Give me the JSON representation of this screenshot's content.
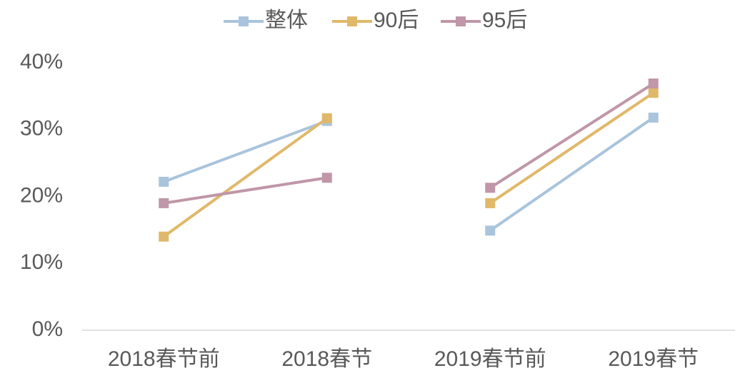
{
  "chart_data": {
    "type": "line",
    "categories": [
      "2018春节前",
      "2018春节",
      "2019春节前",
      "2019春节"
    ],
    "series": [
      {
        "name": "整体",
        "color": "#a9c4dc",
        "values": [
          22.2,
          31.3,
          14.9,
          31.8
        ]
      },
      {
        "name": "90后",
        "color": "#e0b86a",
        "values": [
          14,
          31.7,
          19,
          35.5
        ]
      },
      {
        "name": "95后",
        "color": "#c096a8",
        "values": [
          19,
          22.8,
          21.3,
          36.9
        ]
      }
    ],
    "ylim": [
      0,
      40
    ],
    "yticks": [
      {
        "value": 0,
        "label": "0%"
      },
      {
        "value": 10,
        "label": "10%"
      },
      {
        "value": 20,
        "label": "20%"
      },
      {
        "value": 30,
        "label": "30%"
      },
      {
        "value": 40,
        "label": "40%"
      }
    ],
    "legend": "top"
  }
}
